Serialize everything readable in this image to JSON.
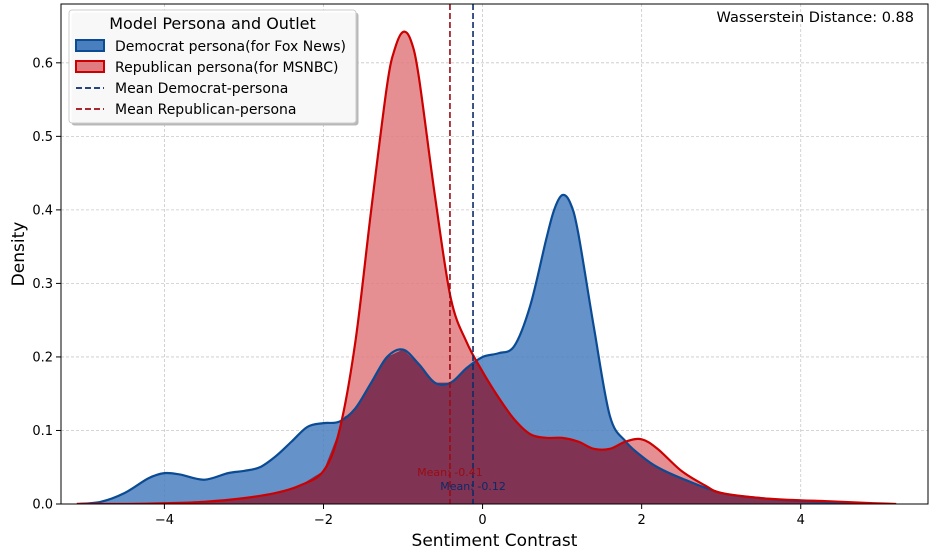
{
  "chart_data": {
    "type": "area",
    "title": "",
    "xlabel": "Sentiment Contrast",
    "ylabel": "Density",
    "xlim": [
      -5.3,
      5.6
    ],
    "ylim": [
      0,
      0.68
    ],
    "x_ticks": [
      -4,
      -2,
      0,
      2,
      4
    ],
    "x_tick_labels": [
      "−4",
      "−2",
      "0",
      "2",
      "4"
    ],
    "y_ticks": [
      0.0,
      0.1,
      0.2,
      0.3,
      0.4,
      0.5,
      0.6
    ],
    "y_tick_labels": [
      "0.0",
      "0.1",
      "0.2",
      "0.3",
      "0.4",
      "0.5",
      "0.6"
    ],
    "grid": true,
    "legend_title": "Model Persona and Outlet",
    "legend_position": "top-left",
    "annotation": "Wasserstein Distance: 0.88",
    "series": [
      {
        "name": "Democrat persona(for Fox News)",
        "fill_color": "#4a7fbf",
        "line_color": "#0b4b94",
        "x": [
          -5.1,
          -4.8,
          -4.5,
          -4.2,
          -4.0,
          -3.8,
          -3.5,
          -3.2,
          -3.0,
          -2.8,
          -2.6,
          -2.4,
          -2.2,
          -2.0,
          -1.8,
          -1.6,
          -1.4,
          -1.2,
          -1.0,
          -0.8,
          -0.6,
          -0.4,
          -0.2,
          0.0,
          0.2,
          0.4,
          0.6,
          0.8,
          0.9,
          1.0,
          1.1,
          1.2,
          1.4,
          1.6,
          1.8,
          2.0,
          2.2,
          2.5,
          3.0,
          3.5,
          4.0,
          4.5,
          5.0
        ],
        "y": [
          0.0,
          0.003,
          0.015,
          0.035,
          0.042,
          0.04,
          0.033,
          0.042,
          0.045,
          0.05,
          0.065,
          0.085,
          0.105,
          0.11,
          0.112,
          0.13,
          0.165,
          0.2,
          0.21,
          0.19,
          0.165,
          0.165,
          0.185,
          0.2,
          0.205,
          0.215,
          0.27,
          0.36,
          0.4,
          0.42,
          0.41,
          0.37,
          0.24,
          0.12,
          0.085,
          0.065,
          0.05,
          0.035,
          0.015,
          0.008,
          0.004,
          0.002,
          0.0
        ]
      },
      {
        "name": "Republican persona(for MSNBC)",
        "fill_color": "#e07b7f",
        "line_color": "#cc0000",
        "x": [
          -5.1,
          -4.5,
          -4.0,
          -3.5,
          -3.0,
          -2.6,
          -2.3,
          -2.0,
          -1.8,
          -1.6,
          -1.4,
          -1.2,
          -1.1,
          -1.0,
          -0.9,
          -0.8,
          -0.6,
          -0.4,
          -0.2,
          0.0,
          0.2,
          0.4,
          0.6,
          0.8,
          1.0,
          1.2,
          1.4,
          1.6,
          1.8,
          2.0,
          2.2,
          2.5,
          2.8,
          3.0,
          3.5,
          4.0,
          4.3,
          4.7,
          5.2
        ],
        "y": [
          0.0,
          0.0,
          0.001,
          0.003,
          0.008,
          0.015,
          0.025,
          0.045,
          0.1,
          0.22,
          0.4,
          0.57,
          0.62,
          0.642,
          0.63,
          0.58,
          0.42,
          0.28,
          0.22,
          0.18,
          0.145,
          0.115,
          0.095,
          0.09,
          0.09,
          0.085,
          0.075,
          0.075,
          0.085,
          0.088,
          0.075,
          0.045,
          0.025,
          0.015,
          0.008,
          0.005,
          0.004,
          0.002,
          0.0
        ]
      }
    ],
    "overlap_color": "#7a2d4d",
    "means": [
      {
        "name": "Mean Democrat-persona",
        "value": -0.12,
        "label": "Mean: -0.12",
        "color": "#0b2a6a"
      },
      {
        "name": "Mean Republican-persona",
        "value": -0.41,
        "label": "Mean: -0.41",
        "color": "#9b0b13"
      }
    ]
  }
}
